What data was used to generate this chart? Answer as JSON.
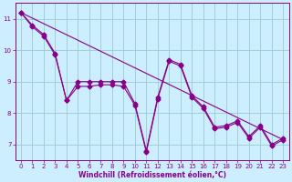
{
  "xlabel": "Windchill (Refroidissement éolien,°C)",
  "bg_color": "#cceeff",
  "line_color": "#880088",
  "grid_color": "#99cccc",
  "x_values": [
    0,
    1,
    2,
    3,
    4,
    5,
    6,
    7,
    8,
    9,
    10,
    11,
    12,
    13,
    14,
    15,
    16,
    17,
    18,
    19,
    20,
    21,
    22,
    23
  ],
  "line1": [
    11.2,
    10.8,
    10.5,
    9.9,
    8.4,
    9.0,
    9.0,
    9.0,
    9.0,
    9.0,
    8.3,
    6.8,
    8.5,
    9.7,
    9.55,
    8.55,
    8.2,
    7.55,
    7.6,
    7.75,
    7.25,
    7.6,
    7.0,
    7.2
  ],
  "line2": [
    11.2,
    10.75,
    10.45,
    9.85,
    8.4,
    8.85,
    8.85,
    8.9,
    8.9,
    8.85,
    8.25,
    6.75,
    8.45,
    9.65,
    9.5,
    8.5,
    8.15,
    7.5,
    7.55,
    7.7,
    7.2,
    7.55,
    6.95,
    7.15
  ],
  "trend_x": [
    0,
    23
  ],
  "trend_y": [
    11.2,
    7.15
  ],
  "ylim": [
    6.5,
    11.5
  ],
  "xlim": [
    -0.5,
    23.5
  ],
  "yticks": [
    7,
    8,
    9,
    10,
    11
  ],
  "xticks": [
    0,
    1,
    2,
    3,
    4,
    5,
    6,
    7,
    8,
    9,
    10,
    11,
    12,
    13,
    14,
    15,
    16,
    17,
    18,
    19,
    20,
    21,
    22,
    23
  ]
}
